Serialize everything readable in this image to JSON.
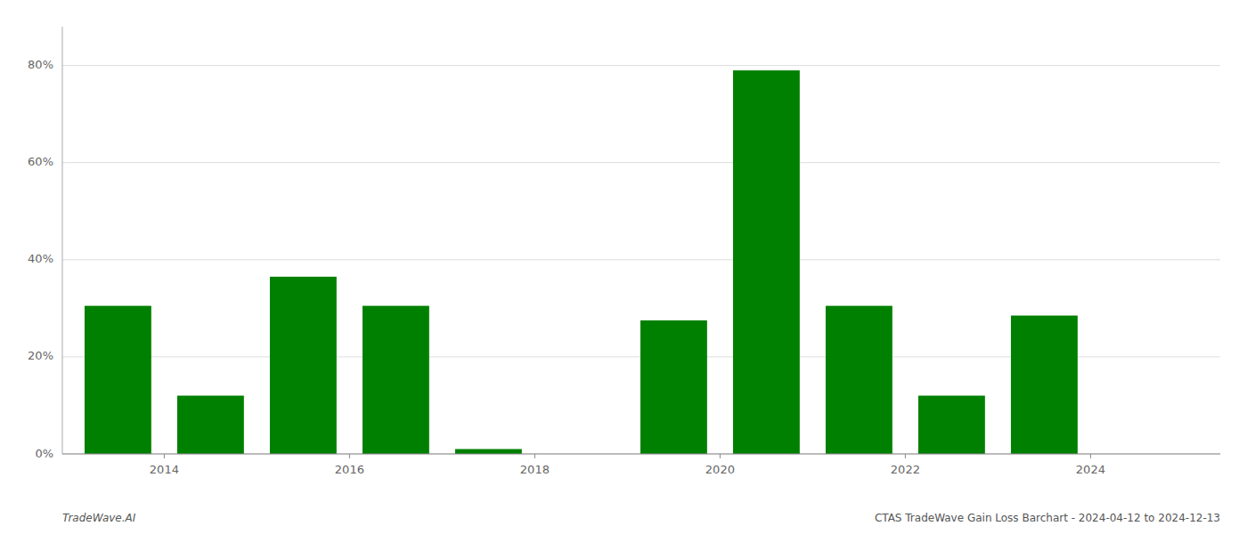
{
  "chart_data": {
    "type": "bar",
    "x": [
      2013,
      2014,
      2015,
      2016,
      2017,
      2018,
      2019,
      2020,
      2021,
      2022,
      2023,
      2024
    ],
    "values": [
      0.305,
      0.12,
      0.365,
      0.305,
      0.01,
      0.0,
      0.275,
      0.79,
      0.305,
      0.12,
      0.285,
      0.0
    ],
    "color": "#008000",
    "xlim": [
      2012.4,
      2024.9
    ],
    "xticks": [
      {
        "value": 2013.5,
        "label": "2014"
      },
      {
        "value": 2015.5,
        "label": "2016"
      },
      {
        "value": 2017.5,
        "label": "2018"
      },
      {
        "value": 2019.5,
        "label": "2020"
      },
      {
        "value": 2021.5,
        "label": "2022"
      },
      {
        "value": 2023.5,
        "label": "2024"
      }
    ],
    "ylim": [
      0,
      0.88
    ],
    "yticks": [
      {
        "value": 0,
        "label": "0%"
      },
      {
        "value": 0.2,
        "label": "20%"
      },
      {
        "value": 0.4,
        "label": "40%"
      },
      {
        "value": 0.6,
        "label": "60%"
      },
      {
        "value": 0.8,
        "label": "80%"
      }
    ],
    "grid": true,
    "annotations": [
      "TradeWave.AI",
      "CTAS TradeWave Gain Loss Barchart - 2024-04-12 to 2024-12-13"
    ]
  }
}
